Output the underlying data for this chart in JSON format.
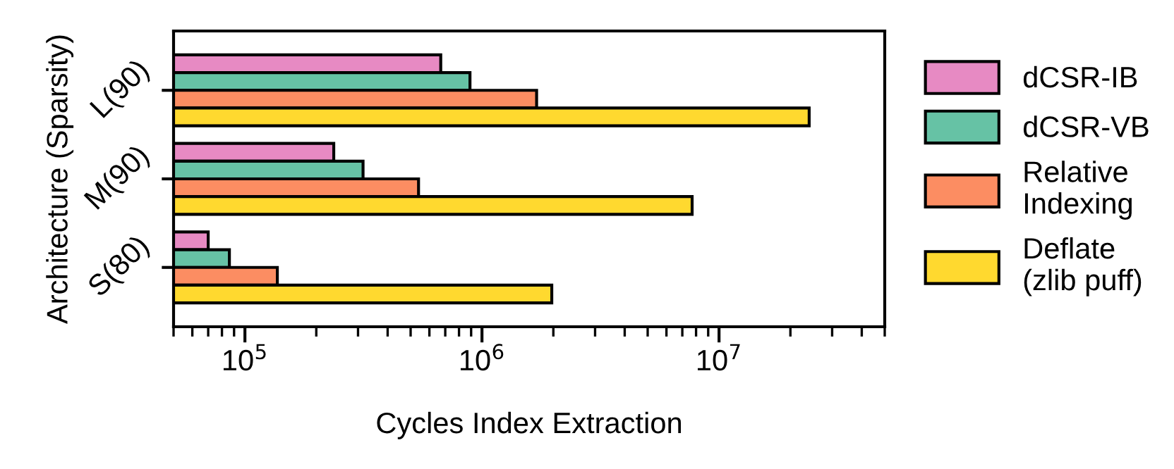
{
  "chart_data": {
    "type": "bar",
    "orientation": "horizontal",
    "xlabel": "Cycles Index Extraction",
    "ylabel": "Architecture (Sparsity)",
    "categories": [
      "L(90)",
      "M(90)",
      "S(80)"
    ],
    "series": [
      {
        "name": "dCSR-IB",
        "color": "#e78ac3",
        "values": [
          670000,
          237000,
          70000
        ]
      },
      {
        "name": "dCSR-VB",
        "color": "#66c2a5",
        "values": [
          890000,
          315000,
          86000
        ]
      },
      {
        "name": "Relative\nIndexing",
        "color": "#fc8d62",
        "values": [
          1700000,
          540000,
          137000
        ]
      },
      {
        "name": "Deflate\n(zlib puff)",
        "color": "#ffd92f",
        "values": [
          24000000,
          7700000,
          1970000
        ]
      }
    ],
    "log": "x",
    "xlim": [
      50000,
      50000000
    ],
    "xticks": [
      {
        "value": 100000,
        "label": "10$^{5}$"
      },
      {
        "value": 1000000,
        "label": "10$^{6}$"
      },
      {
        "value": 10000000,
        "label": "10$^{7}$"
      }
    ],
    "legend": "right",
    "grid": false
  }
}
